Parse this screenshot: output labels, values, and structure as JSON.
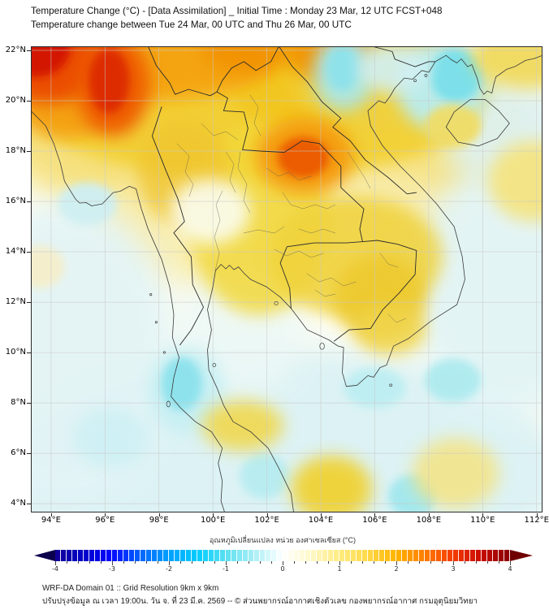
{
  "header": {
    "title_line1": "Temperature Change (°C) - [Data Assimilation] _ Initial Time : Monday 23 Mar, 12 UTC FCST+048",
    "title_line2": "Temperature change between Tue 24 Mar, 00 UTC and Thu 26 Mar, 00 UTC"
  },
  "footer": {
    "line1": "WRF-DA Domain 01 :: Grid Resolution 9km x 9km",
    "line2": "ปรับปรุงข้อมูล ณ เวลา 19:00น. วัน จ. ที่ 23 มี.ค. 2569 -- © ส่วนพยากรณ์อากาศเชิงตัวเลข กองพยากรณ์อากาศ กรมอุตุนิยมวิทยา"
  },
  "chart_data": {
    "type": "heatmap",
    "title": "Temperature Change (°C) - [Data Assimilation] _ Initial Time : Monday 23 Mar, 12 UTC FCST+048",
    "subtitle": "Temperature change between Tue 24 Mar, 00 UTC and Thu 26 Mar, 00 UTC",
    "grid": true,
    "x_axis": {
      "range": [
        93.25,
        112.22
      ],
      "ticks": [
        94,
        96,
        98,
        100,
        102,
        104,
        106,
        108,
        110,
        112
      ],
      "tick_labels": [
        "94°E",
        "96°E",
        "98°E",
        "100°E",
        "102°E",
        "104°E",
        "106°E",
        "108°E",
        "110°E",
        "112°E"
      ]
    },
    "y_axis": {
      "range": [
        3.65,
        22.16
      ],
      "ticks": [
        22,
        20,
        18,
        16,
        14,
        12,
        10,
        8,
        6,
        4
      ],
      "tick_labels": [
        "22°N",
        "20°N",
        "18°N",
        "16°N",
        "14°N",
        "12°N",
        "10°N",
        "8°N",
        "6°N",
        "4°N"
      ]
    },
    "colorbar": {
      "label": "อุณหภูมิเปลี่ยนแปลง หน่วย องศาเซลเซียส (°C)",
      "unit": "°C",
      "range": [
        -4,
        4
      ],
      "cells": 80,
      "tick_step_minor": 0.2,
      "tick_labels": [
        "-4",
        "-3",
        "-2",
        "-1",
        "0",
        "1",
        "2",
        "3",
        "4"
      ],
      "left_arrow_color": "#0a004b",
      "right_arrow_color": "#700000",
      "stops": [
        [
          -4.0,
          "#140096"
        ],
        [
          -3.5,
          "#0000c8"
        ],
        [
          -3.0,
          "#0008ff"
        ],
        [
          -2.5,
          "#0064ff"
        ],
        [
          -2.0,
          "#00a0ff"
        ],
        [
          -1.5,
          "#00ccff"
        ],
        [
          -1.0,
          "#5ae0f0"
        ],
        [
          -0.5,
          "#aaeef6"
        ],
        [
          -0.15,
          "#e4fafc"
        ],
        [
          0.0,
          "#ffffff"
        ],
        [
          0.15,
          "#fffdf0"
        ],
        [
          0.5,
          "#fff8c8"
        ],
        [
          1.0,
          "#ffec80"
        ],
        [
          1.5,
          "#ffd948"
        ],
        [
          2.0,
          "#ffb400"
        ],
        [
          2.5,
          "#ff7d00"
        ],
        [
          3.0,
          "#f53c00"
        ],
        [
          3.5,
          "#c80a00"
        ],
        [
          4.0,
          "#8c0000"
        ]
      ]
    },
    "base_color": "#fdfdf3",
    "field_features": [
      {
        "name": "north-warm-wash",
        "lon": 102.0,
        "lat": 18.8,
        "rx_deg": 10.0,
        "ry_deg": 4.2,
        "color": "#f6e07a",
        "opacity": 0.95,
        "soft": "big"
      },
      {
        "name": "mid-warm-wash",
        "lon": 102.5,
        "lat": 15.0,
        "rx_deg": 7.0,
        "ry_deg": 2.8,
        "color": "#f8edb0",
        "opacity": 0.9,
        "soft": "big"
      },
      {
        "name": "south-sea-wash",
        "lon": 102.5,
        "lat": 5.2,
        "rx_deg": 10.5,
        "ry_deg": 5.0,
        "color": "#dcf2f4",
        "opacity": 1,
        "soft": "big"
      },
      {
        "name": "andaman-wash",
        "lon": 94.6,
        "lat": 10.0,
        "rx_deg": 4.0,
        "ry_deg": 6.0,
        "color": "#e3f4f6",
        "opacity": 0.95,
        "soft": "big"
      },
      {
        "name": "eastsea-wash",
        "lon": 110.9,
        "lat": 12.5,
        "rx_deg": 3.6,
        "ry_deg": 5.0,
        "color": "#e2f4f6",
        "opacity": 0.95,
        "soft": "big"
      },
      {
        "name": "hainan-sea-wash",
        "lon": 110.8,
        "lat": 18.8,
        "rx_deg": 2.4,
        "ry_deg": 2.2,
        "color": "#ddf2f5",
        "opacity": 0.9,
        "soft": "big"
      },
      {
        "name": "gulf-wash",
        "lon": 101.0,
        "lat": 10.8,
        "rx_deg": 2.4,
        "ry_deg": 2.6,
        "color": "#ecf8f6",
        "opacity": 0.9,
        "soft": "big"
      },
      {
        "name": "north-yellow-band",
        "lon": 101.5,
        "lat": 19.9,
        "rx_deg": 8.3,
        "ry_deg": 3.0,
        "color": "#f2cf2e",
        "opacity": 0.9,
        "soft": "mid"
      },
      {
        "name": "laos-yellow",
        "lon": 103.2,
        "lat": 20.4,
        "rx_deg": 2.4,
        "ry_deg": 1.7,
        "color": "#f2c41e",
        "opacity": 0.8,
        "soft": "mid"
      },
      {
        "name": "central-yellow",
        "lon": 101.7,
        "lat": 15.3,
        "rx_deg": 2.6,
        "ry_deg": 3.8,
        "color": "#f2d83a",
        "opacity": 0.85,
        "soft": "mid"
      },
      {
        "name": "west-th-yellow",
        "lon": 98.9,
        "lat": 17.2,
        "rx_deg": 1.7,
        "ry_deg": 2.1,
        "color": "#f0c52e",
        "opacity": 0.8,
        "soft": "mid"
      },
      {
        "name": "cambodia-yellow",
        "lon": 105.3,
        "lat": 13.8,
        "rx_deg": 3.2,
        "ry_deg": 2.4,
        "color": "#f0d23a",
        "opacity": 0.85,
        "soft": "mid"
      },
      {
        "name": "vn-south-yellow",
        "lon": 106.2,
        "lat": 12.2,
        "rx_deg": 1.7,
        "ry_deg": 1.7,
        "color": "#edc92e",
        "opacity": 0.9,
        "soft": "mid"
      },
      {
        "name": "delta-yellow",
        "lon": 106.6,
        "lat": 10.9,
        "rx_deg": 1.3,
        "ry_deg": 1.0,
        "color": "#f0d449",
        "opacity": 0.85,
        "soft": "mid"
      },
      {
        "name": "ne-yellow",
        "lon": 106.6,
        "lat": 20.6,
        "rx_deg": 3.6,
        "ry_deg": 2.0,
        "color": "#f0d03c",
        "opacity": 0.85,
        "soft": "mid"
      },
      {
        "name": "top-orange-band",
        "lon": 97.5,
        "lat": 21.6,
        "rx_deg": 4.8,
        "ry_deg": 1.6,
        "color": "#f5a00a",
        "opacity": 0.9,
        "soft": "mid"
      },
      {
        "name": "nw-orange-halo",
        "lon": 94.6,
        "lat": 20.6,
        "rx_deg": 2.3,
        "ry_deg": 2.1,
        "color": "#f59a10",
        "opacity": 0.85,
        "soft": "mid"
      },
      {
        "name": "nw-red-outer",
        "lon": 93.9,
        "lat": 21.6,
        "rx_deg": 2.0,
        "ry_deg": 1.7,
        "color": "#ea4a00",
        "opacity": 0.95,
        "soft": "mid"
      },
      {
        "name": "nw-red-core",
        "lon": 93.45,
        "lat": 22.05,
        "rx_deg": 1.25,
        "ry_deg": 1.1,
        "color": "#d31500",
        "opacity": 1,
        "soft": "small"
      },
      {
        "name": "red-blob-outer",
        "lon": 96.3,
        "lat": 20.6,
        "rx_deg": 1.35,
        "ry_deg": 2.0,
        "color": "#ee5a00",
        "opacity": 0.95,
        "soft": "mid"
      },
      {
        "name": "red-blob-core",
        "lon": 96.15,
        "lat": 20.8,
        "rx_deg": 0.75,
        "ry_deg": 1.3,
        "color": "#dd2c00",
        "opacity": 0.95,
        "soft": "small"
      },
      {
        "name": "top-orange-101",
        "lon": 101.3,
        "lat": 22.1,
        "rx_deg": 1.7,
        "ry_deg": 1.0,
        "color": "#f29000",
        "opacity": 0.85,
        "soft": "mid"
      },
      {
        "name": "top-orange-104",
        "lon": 104.3,
        "lat": 21.9,
        "rx_deg": 1.6,
        "ry_deg": 1.1,
        "color": "#f29000",
        "opacity": 0.9,
        "soft": "mid"
      },
      {
        "name": "hotspot-outer",
        "lon": 103.4,
        "lat": 17.8,
        "rx_deg": 1.8,
        "ry_deg": 1.5,
        "color": "#f59a10",
        "opacity": 0.95,
        "soft": "mid"
      },
      {
        "name": "hotspot-core",
        "lon": 103.35,
        "lat": 17.75,
        "rx_deg": 0.95,
        "ry_deg": 0.8,
        "color": "#ec5c00",
        "opacity": 1,
        "soft": "small"
      },
      {
        "name": "cyan-105-21-outer",
        "lon": 104.85,
        "lat": 21.1,
        "rx_deg": 1.15,
        "ry_deg": 1.5,
        "color": "#a7e8ef",
        "opacity": 0.9,
        "soft": "mid"
      },
      {
        "name": "cyan-105-21-core",
        "lon": 104.8,
        "lat": 21.3,
        "rx_deg": 0.6,
        "ry_deg": 0.9,
        "color": "#8ce2ec",
        "opacity": 0.9,
        "soft": "small"
      },
      {
        "name": "tonkin-cyan-outer",
        "lon": 108.5,
        "lat": 20.6,
        "rx_deg": 1.7,
        "ry_deg": 1.8,
        "color": "#b9edf2",
        "opacity": 0.95,
        "soft": "mid"
      },
      {
        "name": "tonkin-cyan-core",
        "lon": 109.0,
        "lat": 21.0,
        "rx_deg": 0.95,
        "ry_deg": 1.05,
        "color": "#79dfea",
        "opacity": 0.95,
        "soft": "small"
      },
      {
        "name": "vn-coast-cyan",
        "lon": 106.7,
        "lat": 21.3,
        "rx_deg": 1.3,
        "ry_deg": 1.0,
        "color": "#d2f0f4",
        "opacity": 0.9,
        "soft": "mid"
      },
      {
        "name": "myanmar-cyan",
        "lon": 95.35,
        "lat": 15.9,
        "rx_deg": 1.1,
        "ry_deg": 0.85,
        "color": "#cfeff3",
        "opacity": 0.95,
        "soft": "small"
      },
      {
        "name": "central-pale",
        "lon": 99.9,
        "lat": 15.6,
        "rx_deg": 1.5,
        "ry_deg": 1.3,
        "color": "#fafdf2",
        "opacity": 0.9,
        "soft": "mid"
      },
      {
        "name": "peninsula-cyan-outer",
        "lon": 99.0,
        "lat": 8.5,
        "rx_deg": 1.4,
        "ry_deg": 1.7,
        "color": "#c5eff3",
        "opacity": 0.9,
        "soft": "mid"
      },
      {
        "name": "peninsula-cyan-core",
        "lon": 98.85,
        "lat": 8.75,
        "rx_deg": 0.75,
        "ry_deg": 1.05,
        "color": "#8ce2ec",
        "opacity": 0.95,
        "soft": "small"
      },
      {
        "name": "sea-cyan-106-86",
        "lon": 106.0,
        "lat": 8.6,
        "rx_deg": 1.15,
        "ry_deg": 0.8,
        "color": "#bceef2",
        "opacity": 0.9,
        "soft": "small"
      },
      {
        "name": "sea-cyan-109-89",
        "lon": 108.9,
        "lat": 8.9,
        "rx_deg": 1.05,
        "ry_deg": 0.85,
        "color": "#abeaef",
        "opacity": 0.9,
        "soft": "small"
      },
      {
        "name": "sea-cyan-102-51",
        "lon": 101.9,
        "lat": 5.1,
        "rx_deg": 0.9,
        "ry_deg": 0.9,
        "color": "#b5ecf1",
        "opacity": 0.9,
        "soft": "small"
      },
      {
        "name": "bottom-cyan-107",
        "lon": 107.4,
        "lat": 4.3,
        "rx_deg": 0.9,
        "ry_deg": 0.85,
        "color": "#9fe7ee",
        "opacity": 0.9,
        "soft": "small"
      },
      {
        "name": "andaman-cyan-7",
        "lon": 96.2,
        "lat": 6.6,
        "rx_deg": 1.4,
        "ry_deg": 1.2,
        "color": "#cdf0f4",
        "opacity": 0.9,
        "soft": "mid"
      },
      {
        "name": "hainan-yellow",
        "lon": 108.9,
        "lat": 19.0,
        "rx_deg": 1.05,
        "ry_deg": 0.85,
        "color": "#f0dd68",
        "opacity": 0.95,
        "soft": "small"
      },
      {
        "name": "east-yellow",
        "lon": 111.9,
        "lat": 16.8,
        "rx_deg": 1.7,
        "ry_deg": 1.6,
        "color": "#f5e37c",
        "opacity": 0.9,
        "soft": "mid"
      },
      {
        "name": "right-top-yellow",
        "lon": 111.8,
        "lat": 21.8,
        "rx_deg": 2.2,
        "ry_deg": 1.3,
        "color": "#f0d855",
        "opacity": 0.9,
        "soft": "mid"
      },
      {
        "name": "peninsula-yellow",
        "lon": 101.1,
        "lat": 7.1,
        "rx_deg": 1.5,
        "ry_deg": 1.0,
        "color": "#f0d84e",
        "opacity": 0.9,
        "soft": "mid"
      },
      {
        "name": "bottom-yellow-104",
        "lon": 104.4,
        "lat": 4.6,
        "rx_deg": 1.5,
        "ry_deg": 1.3,
        "color": "#f1d02a",
        "opacity": 0.9,
        "soft": "mid"
      },
      {
        "name": "bottom-right-yellow",
        "lon": 109.0,
        "lat": 5.2,
        "rx_deg": 1.6,
        "ry_deg": 1.4,
        "color": "#f4e382",
        "opacity": 0.85,
        "soft": "mid"
      },
      {
        "name": "west-faint-warm",
        "lon": 93.6,
        "lat": 13.4,
        "rx_deg": 0.9,
        "ry_deg": 0.85,
        "color": "#f7eec6",
        "opacity": 0.85,
        "soft": "small"
      }
    ]
  }
}
